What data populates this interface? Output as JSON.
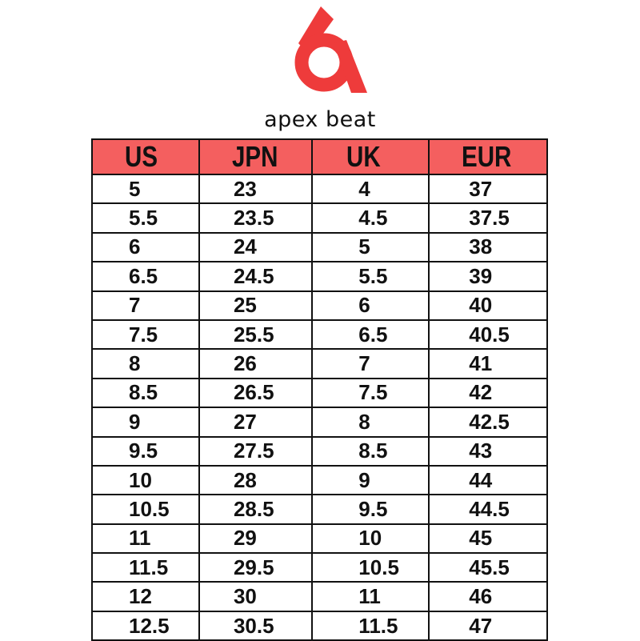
{
  "brand": {
    "name": "apex beat",
    "logo_color": "#ee3b3b"
  },
  "colors": {
    "header_bg": "#f45f5f",
    "text": "#111111"
  },
  "table": {
    "headers": [
      "US",
      "JPN",
      "UK",
      "EUR"
    ],
    "rows": [
      [
        "5",
        "23",
        "4",
        "37"
      ],
      [
        "5.5",
        "23.5",
        "4.5",
        "37.5"
      ],
      [
        "6",
        "24",
        "5",
        "38"
      ],
      [
        "6.5",
        "24.5",
        "5.5",
        "39"
      ],
      [
        "7",
        "25",
        "6",
        "40"
      ],
      [
        "7.5",
        "25.5",
        "6.5",
        "40.5"
      ],
      [
        "8",
        "26",
        "7",
        "41"
      ],
      [
        "8.5",
        "26.5",
        "7.5",
        "42"
      ],
      [
        "9",
        "27",
        "8",
        "42.5"
      ],
      [
        "9.5",
        "27.5",
        "8.5",
        "43"
      ],
      [
        "10",
        "28",
        "9",
        "44"
      ],
      [
        "10.5",
        "28.5",
        "9.5",
        "44.5"
      ],
      [
        "11",
        "29",
        "10",
        "45"
      ],
      [
        "11.5",
        "29.5",
        "10.5",
        "45.5"
      ],
      [
        "12",
        "30",
        "11",
        "46"
      ],
      [
        "12.5",
        "30.5",
        "11.5",
        "47"
      ]
    ]
  }
}
